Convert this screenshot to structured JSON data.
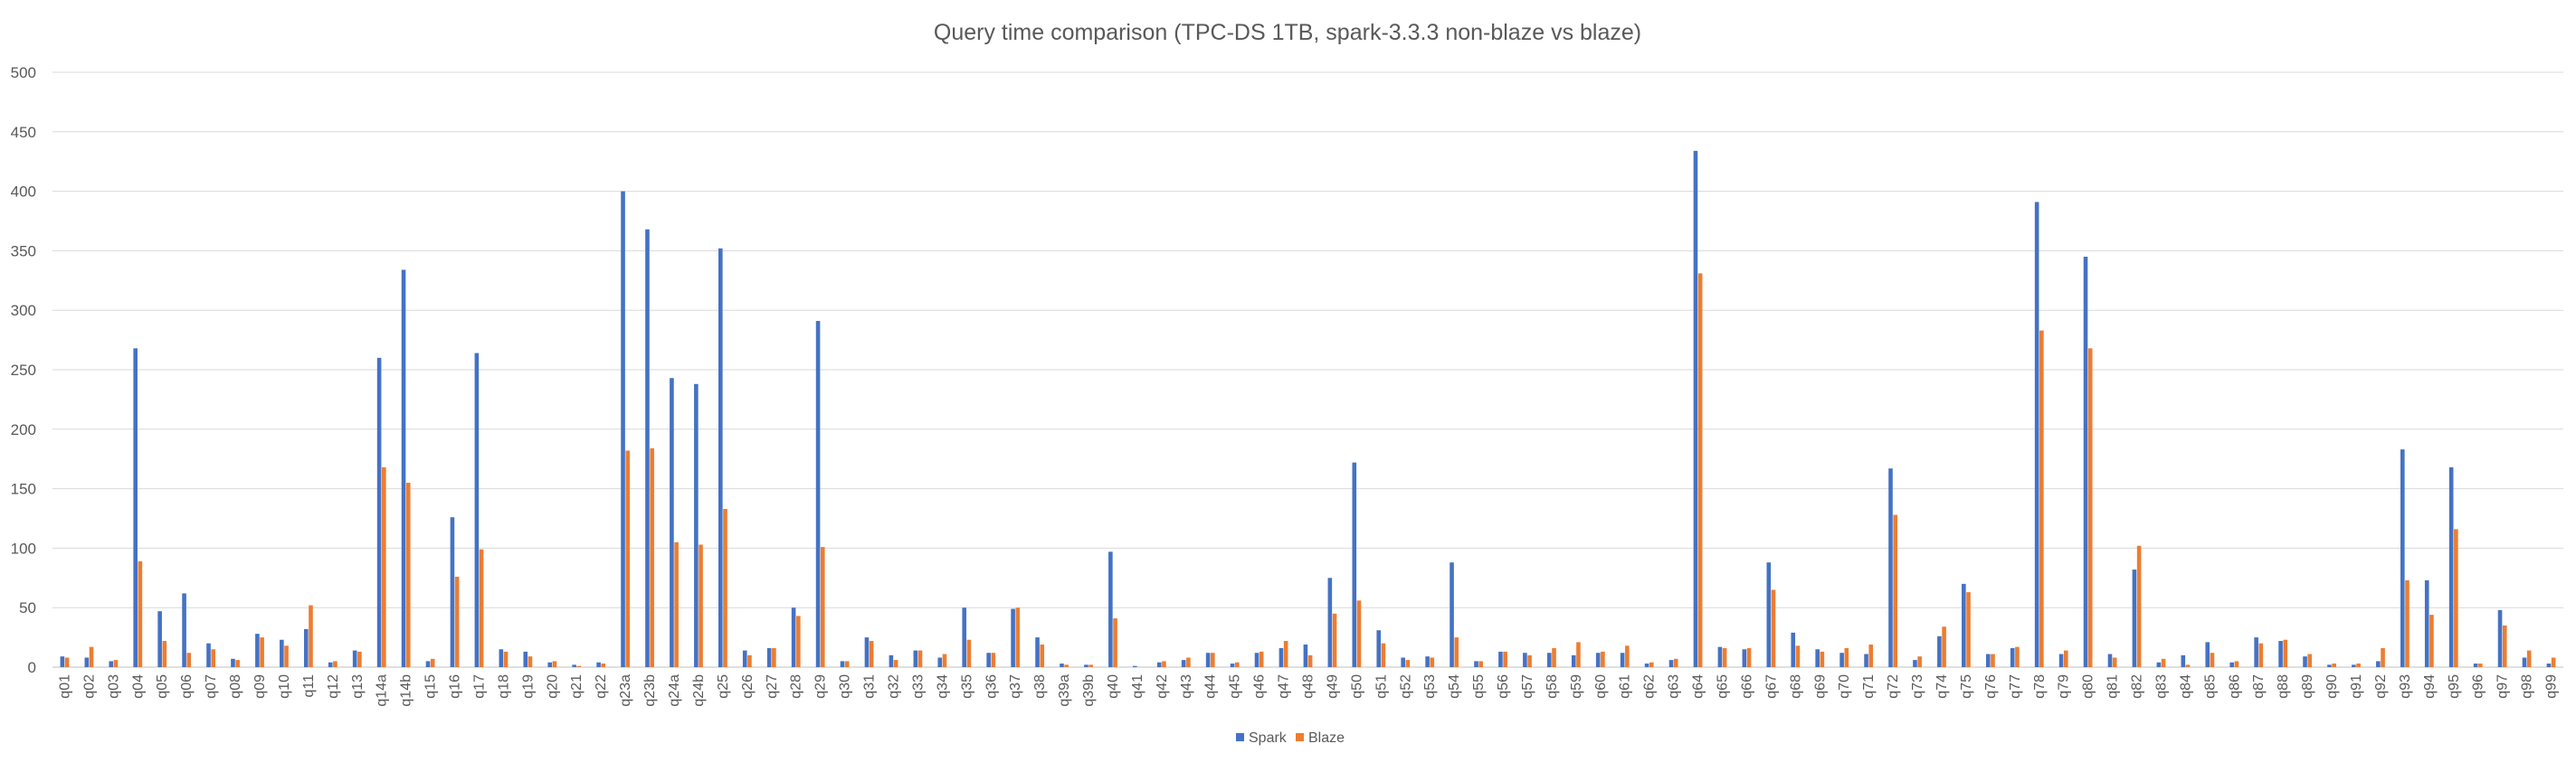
{
  "chart_data": {
    "type": "bar",
    "title": "Query time comparison (TPC-DS 1TB, spark-3.3.3 non-blaze vs blaze)",
    "xlabel": "",
    "ylabel": "",
    "ylim": [
      0,
      500
    ],
    "yticks": [
      "0",
      "50",
      "100",
      "150",
      "200",
      "250",
      "300",
      "350",
      "400",
      "450",
      "500"
    ],
    "grid": true,
    "legend_position": "bottom",
    "colors": {
      "Spark": "#4472c4",
      "Blaze": "#ed7d31"
    },
    "categories": [
      "q01",
      "q02",
      "q03",
      "q04",
      "q05",
      "q06",
      "q07",
      "q08",
      "q09",
      "q10",
      "q11",
      "q12",
      "q13",
      "q14a",
      "q14b",
      "q15",
      "q16",
      "q17",
      "q18",
      "q19",
      "q20",
      "q21",
      "q22",
      "q23a",
      "q23b",
      "q24a",
      "q24b",
      "q25",
      "q26",
      "q27",
      "q28",
      "q29",
      "q30",
      "q31",
      "q32",
      "q33",
      "q34",
      "q35",
      "q36",
      "q37",
      "q38",
      "q39a",
      "q39b",
      "q40",
      "q41",
      "q42",
      "q43",
      "q44",
      "q45",
      "q46",
      "q47",
      "q48",
      "q49",
      "q50",
      "q51",
      "q52",
      "q53",
      "q54",
      "q55",
      "q56",
      "q57",
      "q58",
      "q59",
      "q60",
      "q61",
      "q62",
      "q63",
      "q64",
      "q65",
      "q66",
      "q67",
      "q68",
      "q69",
      "q70",
      "q71",
      "q72",
      "q73",
      "q74",
      "q75",
      "q76",
      "q77",
      "q78",
      "q79",
      "q80",
      "q81",
      "q82",
      "q83",
      "q84",
      "q85",
      "q86",
      "q87",
      "q88",
      "q89",
      "q90",
      "q91",
      "q92",
      "q93",
      "q94",
      "q95",
      "q96",
      "q97",
      "q98",
      "q99"
    ],
    "series": [
      {
        "name": "Spark",
        "values": [
          9,
          8,
          5,
          268,
          47,
          62,
          20,
          7,
          28,
          23,
          32,
          4,
          14,
          260,
          334,
          5,
          126,
          264,
          15,
          13,
          4,
          2,
          4,
          400,
          368,
          243,
          238,
          352,
          14,
          16,
          50,
          291,
          5,
          25,
          10,
          14,
          8,
          50,
          12,
          49,
          25,
          3,
          2,
          97,
          1,
          4,
          6,
          12,
          3,
          12,
          16,
          19,
          75,
          172,
          31,
          8,
          9,
          88,
          5,
          13,
          12,
          12,
          10,
          12,
          12,
          3,
          6,
          434,
          17,
          15,
          88,
          29,
          15,
          12,
          11,
          167,
          6,
          26,
          70,
          11,
          16,
          391,
          11,
          345,
          11,
          82,
          4,
          10,
          21,
          4,
          25,
          22,
          9,
          2,
          2,
          5,
          183,
          73,
          168,
          3,
          48,
          8,
          3
        ]
      },
      {
        "name": "Blaze",
        "values": [
          8,
          17,
          6,
          89,
          22,
          12,
          15,
          6,
          25,
          18,
          52,
          5,
          13,
          168,
          155,
          7,
          76,
          99,
          13,
          9,
          5,
          1,
          3,
          182,
          184,
          105,
          103,
          133,
          10,
          16,
          43,
          101,
          5,
          22,
          6,
          14,
          11,
          23,
          12,
          50,
          19,
          2,
          2,
          41,
          0,
          5,
          8,
          12,
          4,
          13,
          22,
          10,
          45,
          56,
          20,
          6,
          8,
          25,
          5,
          13,
          10,
          16,
          21,
          13,
          18,
          4,
          7,
          331,
          16,
          16,
          65,
          18,
          13,
          16,
          19,
          128,
          9,
          34,
          63,
          11,
          17,
          283,
          14,
          268,
          8,
          102,
          7,
          2,
          12,
          5,
          20,
          23,
          11,
          3,
          3,
          16,
          73,
          44,
          116,
          3,
          35,
          14,
          8
        ]
      }
    ]
  }
}
